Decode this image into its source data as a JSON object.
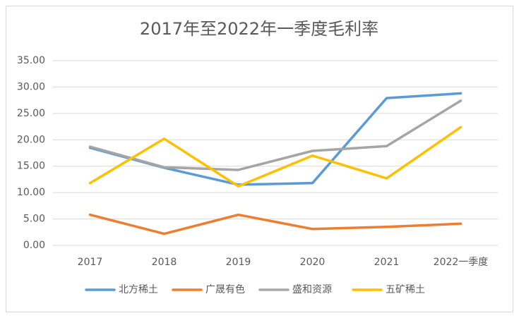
{
  "chart_data": {
    "type": "line",
    "title": "2017年至2022年一季度毛利率",
    "categories": [
      "2017",
      "2018",
      "2019",
      "2020",
      "2021",
      "2022一季度"
    ],
    "series": [
      {
        "name": "北方稀土",
        "color": "#5b9bd5",
        "values": [
          18.5,
          14.7,
          11.5,
          11.8,
          27.9,
          28.8
        ]
      },
      {
        "name": "广晟有色",
        "color": "#ed7d31",
        "values": [
          5.8,
          2.2,
          5.8,
          3.1,
          3.5,
          4.1
        ]
      },
      {
        "name": "盛和资源",
        "color": "#a5a5a5",
        "values": [
          18.7,
          14.8,
          14.3,
          17.9,
          18.8,
          27.4
        ]
      },
      {
        "name": "五矿稀土",
        "color": "#ffc000",
        "values": [
          11.8,
          20.2,
          11.2,
          17.0,
          12.7,
          22.4
        ]
      }
    ],
    "ylim": [
      0,
      35
    ],
    "yticks": [
      {
        "value": 0,
        "label": "0.00"
      },
      {
        "value": 5,
        "label": "5.00"
      },
      {
        "value": 10,
        "label": "10.00"
      },
      {
        "value": 15,
        "label": "15.00"
      },
      {
        "value": 20,
        "label": "20.00"
      },
      {
        "value": 25,
        "label": "25.00"
      },
      {
        "value": 30,
        "label": "30.00"
      },
      {
        "value": 35,
        "label": "35.00"
      }
    ],
    "grid": true,
    "legend": "bottom"
  }
}
